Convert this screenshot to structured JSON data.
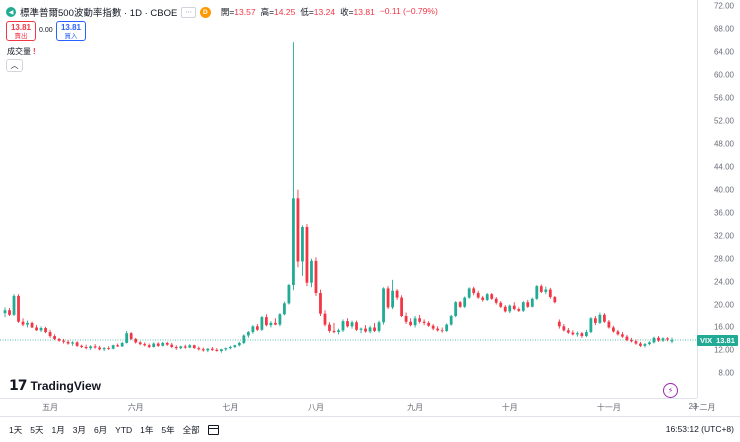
{
  "legend": {
    "title": "標準普爾500波動率指數 · 1D · CBOE",
    "badge_box": "⋯",
    "badge_d": "D",
    "open_k": "開=",
    "open_v": "13.57",
    "high_k": "高=",
    "high_v": "14.25",
    "low_k": "低=",
    "low_v": "13.24",
    "close_k": "收=",
    "close_v": "13.81",
    "change": "−0.11 (−0.79%)"
  },
  "trade": {
    "sell_price": "13.81",
    "sell_label": "賣出",
    "spread": "0.00",
    "buy_price": "13.81",
    "buy_label": "買入"
  },
  "volume_label": "成交量",
  "collapse_icon": "︿",
  "logo_mark": "17",
  "logo_text": "TradingView",
  "price_tag": {
    "symbol": "VIX",
    "value": "13.81"
  },
  "bottom": {
    "ranges": [
      "1天",
      "5天",
      "1月",
      "3月",
      "6月",
      "YTD",
      "1年",
      "5年",
      "全部"
    ],
    "clock": "16:53:12 (UTC+8)"
  },
  "colors": {
    "up": "#22ab94",
    "down": "#f23645",
    "line": "#22ab94"
  },
  "chart_data": {
    "type": "candlestick",
    "title": "標準普爾500波動率指數 · 1D · CBOE",
    "y_ticks": [
      "72.00",
      "68.00",
      "64.00",
      "60.00",
      "56.00",
      "52.00",
      "48.00",
      "44.00",
      "40.00",
      "36.00",
      "32.00",
      "28.00",
      "24.00",
      "20.00",
      "16.00",
      "12.00",
      "8.00"
    ],
    "x_ticks": [
      "五月",
      "六月",
      "七月",
      "八月",
      "九月",
      "十月",
      "十一月",
      "十二月",
      "23"
    ],
    "ylim": [
      6.5,
      72
    ],
    "last_value": 13.81,
    "ohlc": [
      [
        18.5,
        19.5,
        17.8,
        19.0
      ],
      [
        19.0,
        19.4,
        18.0,
        18.2
      ],
      [
        18.2,
        21.8,
        18.0,
        21.5
      ],
      [
        21.5,
        21.8,
        16.8,
        17.0
      ],
      [
        17.0,
        17.6,
        16.2,
        16.5
      ],
      [
        16.5,
        17.2,
        16.0,
        16.8
      ],
      [
        16.8,
        17.0,
        15.9,
        16.0
      ],
      [
        16.0,
        16.4,
        15.4,
        15.5
      ],
      [
        15.5,
        16.2,
        15.2,
        15.9
      ],
      [
        15.9,
        16.1,
        15.0,
        15.2
      ],
      [
        15.2,
        15.6,
        14.2,
        14.5
      ],
      [
        14.5,
        14.8,
        13.8,
        14.0
      ],
      [
        14.0,
        14.2,
        13.5,
        13.7
      ],
      [
        13.7,
        14.0,
        13.2,
        13.5
      ],
      [
        13.5,
        13.8,
        13.0,
        13.2
      ],
      [
        13.2,
        13.6,
        12.8,
        13.4
      ],
      [
        13.4,
        13.6,
        12.6,
        12.8
      ],
      [
        12.8,
        13.0,
        12.4,
        12.6
      ],
      [
        12.6,
        13.0,
        12.2,
        12.4
      ],
      [
        12.4,
        12.9,
        12.1,
        12.7
      ],
      [
        12.7,
        13.1,
        12.3,
        12.5
      ],
      [
        12.5,
        12.8,
        12.0,
        12.2
      ],
      [
        12.2,
        12.6,
        11.9,
        12.4
      ],
      [
        12.4,
        12.7,
        12.1,
        12.3
      ],
      [
        12.3,
        13.0,
        12.2,
        12.9
      ],
      [
        12.9,
        13.2,
        12.6,
        12.7
      ],
      [
        12.7,
        13.5,
        12.6,
        13.3
      ],
      [
        13.3,
        15.4,
        13.2,
        15.0
      ],
      [
        15.0,
        15.2,
        13.8,
        14.0
      ],
      [
        14.0,
        14.2,
        13.2,
        13.4
      ],
      [
        13.4,
        13.6,
        12.9,
        13.1
      ],
      [
        13.1,
        13.4,
        12.7,
        12.9
      ],
      [
        12.9,
        13.2,
        12.4,
        12.6
      ],
      [
        12.6,
        13.4,
        12.5,
        13.2
      ],
      [
        13.2,
        13.4,
        12.6,
        12.8
      ],
      [
        12.8,
        13.5,
        12.7,
        13.3
      ],
      [
        13.3,
        13.5,
        12.8,
        13.0
      ],
      [
        13.0,
        13.3,
        12.4,
        12.6
      ],
      [
        12.6,
        12.9,
        12.1,
        12.4
      ],
      [
        12.4,
        12.8,
        12.2,
        12.7
      ],
      [
        12.7,
        13.0,
        12.3,
        12.5
      ],
      [
        12.5,
        13.1,
        12.4,
        12.9
      ],
      [
        12.9,
        13.0,
        12.3,
        12.4
      ],
      [
        12.4,
        12.7,
        12.0,
        12.2
      ],
      [
        12.2,
        12.5,
        11.8,
        12.0
      ],
      [
        12.0,
        12.4,
        11.7,
        12.3
      ],
      [
        12.3,
        12.6,
        11.9,
        12.1
      ],
      [
        12.1,
        12.4,
        11.8,
        11.9
      ],
      [
        11.9,
        12.3,
        11.6,
        12.2
      ],
      [
        12.2,
        12.5,
        11.9,
        12.4
      ],
      [
        12.4,
        12.8,
        12.2,
        12.6
      ],
      [
        12.6,
        13.0,
        12.4,
        12.9
      ],
      [
        12.9,
        13.5,
        12.7,
        13.3
      ],
      [
        13.3,
        14.8,
        13.1,
        14.6
      ],
      [
        14.6,
        15.4,
        14.2,
        15.2
      ],
      [
        15.2,
        16.4,
        14.9,
        16.2
      ],
      [
        16.2,
        16.6,
        15.4,
        15.6
      ],
      [
        15.6,
        18.0,
        15.4,
        17.8
      ],
      [
        17.8,
        18.3,
        16.2,
        16.4
      ],
      [
        16.4,
        17.1,
        16.0,
        16.8
      ],
      [
        16.8,
        17.6,
        16.4,
        16.5
      ],
      [
        16.5,
        18.5,
        16.2,
        18.3
      ],
      [
        18.3,
        20.5,
        18.1,
        20.2
      ],
      [
        20.2,
        23.6,
        20.0,
        23.4
      ],
      [
        23.4,
        65.7,
        22.5,
        38.5
      ],
      [
        38.5,
        40.0,
        26.5,
        27.5
      ],
      [
        27.5,
        33.8,
        25.0,
        33.5
      ],
      [
        33.5,
        34.0,
        23.2,
        23.8
      ],
      [
        23.8,
        28.0,
        23.0,
        27.6
      ],
      [
        27.6,
        28.2,
        21.5,
        22.0
      ],
      [
        22.0,
        22.6,
        18.0,
        18.4
      ],
      [
        18.4,
        19.0,
        16.2,
        16.5
      ],
      [
        16.5,
        16.9,
        15.1,
        15.4
      ],
      [
        15.4,
        16.8,
        15.0,
        15.2
      ],
      [
        15.2,
        15.8,
        14.8,
        15.5
      ],
      [
        15.5,
        17.4,
        15.2,
        17.1
      ],
      [
        17.1,
        17.6,
        16.0,
        16.2
      ],
      [
        16.2,
        17.2,
        15.8,
        16.9
      ],
      [
        16.9,
        17.2,
        15.4,
        15.6
      ],
      [
        15.6,
        16.0,
        15.0,
        15.8
      ],
      [
        15.8,
        16.4,
        15.1,
        15.3
      ],
      [
        15.3,
        16.3,
        15.0,
        16.0
      ],
      [
        16.0,
        16.8,
        15.2,
        15.4
      ],
      [
        15.4,
        17.2,
        15.1,
        16.9
      ],
      [
        16.9,
        23.0,
        16.5,
        22.8
      ],
      [
        22.8,
        23.2,
        19.2,
        19.5
      ],
      [
        19.5,
        24.3,
        19.2,
        22.4
      ],
      [
        22.4,
        22.7,
        20.8,
        21.2
      ],
      [
        21.2,
        21.6,
        17.8,
        18.0
      ],
      [
        18.0,
        18.6,
        16.6,
        17.0
      ],
      [
        17.0,
        17.6,
        16.2,
        16.4
      ],
      [
        16.4,
        18.0,
        16.0,
        17.6
      ],
      [
        17.6,
        18.2,
        16.7,
        17.0
      ],
      [
        17.0,
        17.4,
        16.4,
        16.8
      ],
      [
        16.8,
        17.1,
        16.1,
        16.3
      ],
      [
        16.3,
        16.6,
        15.5,
        15.8
      ],
      [
        15.8,
        16.2,
        15.3,
        15.5
      ],
      [
        15.5,
        16.0,
        15.1,
        15.4
      ],
      [
        15.4,
        16.7,
        15.2,
        16.5
      ],
      [
        16.5,
        18.2,
        16.3,
        18.0
      ],
      [
        18.0,
        20.6,
        17.8,
        20.4
      ],
      [
        20.4,
        20.6,
        19.4,
        19.6
      ],
      [
        19.6,
        21.4,
        19.4,
        21.2
      ],
      [
        21.2,
        23.0,
        21.0,
        22.8
      ],
      [
        22.8,
        23.1,
        21.6,
        22.0
      ],
      [
        22.0,
        22.4,
        21.0,
        21.2
      ],
      [
        21.2,
        21.5,
        20.5,
        20.8
      ],
      [
        20.8,
        22.0,
        20.6,
        21.8
      ],
      [
        21.8,
        22.0,
        20.8,
        21.0
      ],
      [
        21.0,
        21.3,
        20.0,
        20.3
      ],
      [
        20.3,
        20.6,
        19.4,
        19.6
      ],
      [
        19.6,
        19.9,
        18.6,
        18.8
      ],
      [
        18.8,
        20.0,
        18.5,
        19.8
      ],
      [
        19.8,
        20.4,
        19.0,
        19.2
      ],
      [
        19.2,
        19.5,
        18.7,
        18.9
      ],
      [
        18.9,
        20.6,
        18.7,
        20.4
      ],
      [
        20.4,
        20.8,
        19.4,
        19.6
      ],
      [
        19.6,
        21.2,
        19.5,
        21.0
      ],
      [
        21.0,
        23.4,
        20.8,
        23.2
      ],
      [
        23.2,
        23.5,
        22.0,
        22.2
      ],
      [
        22.2,
        23.1,
        21.8,
        22.6
      ],
      [
        22.6,
        22.9,
        21.0,
        21.3
      ],
      [
        21.3,
        21.5,
        20.2,
        20.4
      ],
      [
        17.0,
        17.4,
        15.8,
        16.2
      ],
      [
        16.2,
        16.6,
        15.3,
        15.5
      ],
      [
        15.5,
        15.9,
        14.9,
        15.1
      ],
      [
        15.1,
        15.5,
        14.6,
        14.8
      ],
      [
        14.8,
        15.3,
        14.4,
        15.0
      ],
      [
        15.0,
        15.2,
        14.2,
        14.5
      ],
      [
        14.5,
        15.6,
        14.3,
        15.2
      ],
      [
        15.2,
        17.8,
        15.0,
        17.6
      ],
      [
        17.6,
        18.0,
        16.4,
        16.8
      ],
      [
        16.8,
        18.6,
        16.6,
        18.2
      ],
      [
        18.2,
        18.5,
        16.8,
        17.0
      ],
      [
        17.0,
        17.3,
        15.8,
        16.0
      ],
      [
        16.0,
        16.3,
        15.1,
        15.3
      ],
      [
        15.3,
        15.6,
        14.6,
        14.8
      ],
      [
        14.8,
        15.2,
        14.2,
        14.4
      ],
      [
        14.4,
        14.7,
        13.6,
        13.8
      ],
      [
        13.8,
        14.2,
        13.4,
        13.6
      ],
      [
        13.6,
        13.9,
        13.0,
        13.2
      ],
      [
        13.2,
        13.5,
        12.6,
        12.8
      ],
      [
        12.8,
        13.3,
        12.5,
        13.1
      ],
      [
        13.1,
        13.6,
        12.9,
        13.4
      ],
      [
        13.4,
        14.4,
        13.2,
        14.2
      ],
      [
        14.2,
        14.5,
        13.5,
        13.7
      ],
      [
        13.7,
        14.3,
        13.5,
        14.1
      ],
      [
        14.1,
        14.3,
        13.6,
        13.9
      ],
      [
        13.57,
        14.25,
        13.24,
        13.81
      ]
    ]
  }
}
